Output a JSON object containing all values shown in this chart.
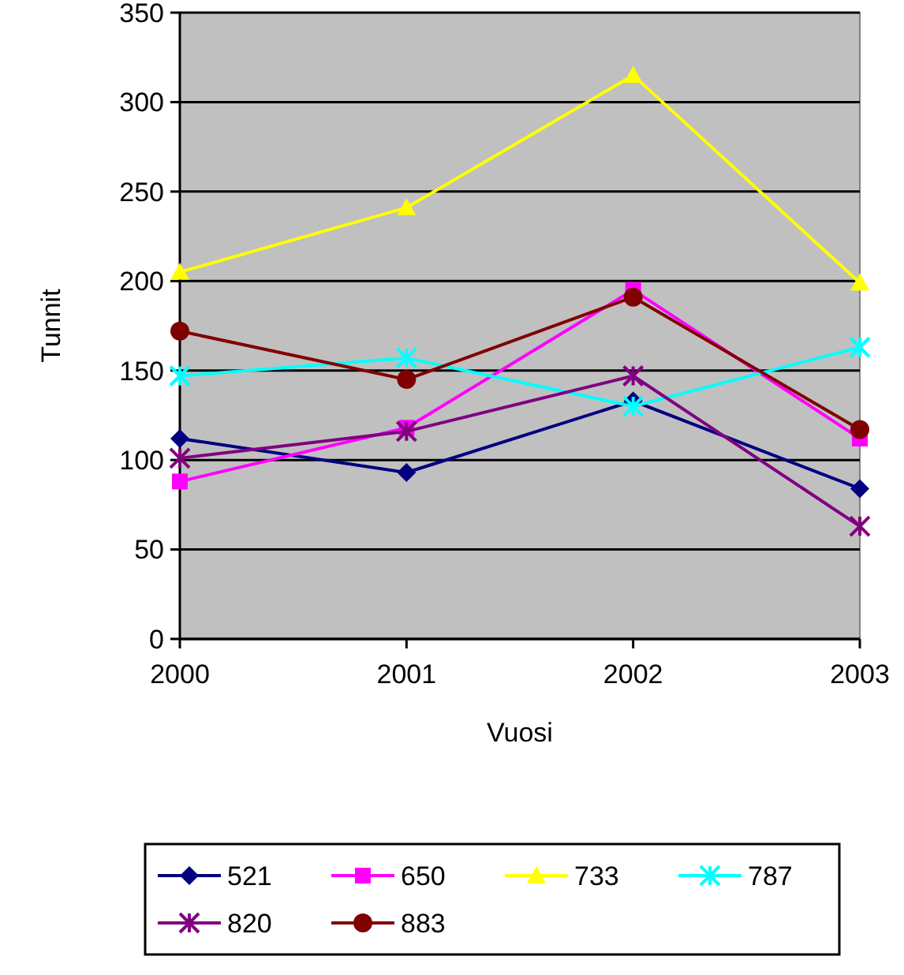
{
  "chart_data": {
    "type": "line",
    "xlabel": "Vuosi",
    "ylabel": "Tunnit",
    "categories": [
      "2000",
      "2001",
      "2002",
      "2003"
    ],
    "ylim": [
      0,
      350
    ],
    "yticks": [
      0,
      50,
      100,
      150,
      200,
      250,
      300,
      350
    ],
    "grid": "y",
    "legend": "bottom",
    "series": [
      {
        "name": "521",
        "color": "#000080",
        "marker": "diamond",
        "values": [
          112,
          93,
          133,
          84
        ]
      },
      {
        "name": "650",
        "color": "#ff00ff",
        "marker": "square",
        "values": [
          88,
          118,
          195,
          112
        ]
      },
      {
        "name": "733",
        "color": "#ffff00",
        "marker": "triangle",
        "values": [
          205,
          241,
          315,
          199
        ]
      },
      {
        "name": "787",
        "color": "#00ffff",
        "marker": "cross",
        "values": [
          147,
          157,
          130,
          163
        ]
      },
      {
        "name": "820",
        "color": "#800080",
        "marker": "cross",
        "values": [
          101,
          116,
          147,
          63
        ]
      },
      {
        "name": "883",
        "color": "#800000",
        "marker": "circle",
        "values": [
          172,
          145,
          191,
          117
        ]
      }
    ]
  }
}
